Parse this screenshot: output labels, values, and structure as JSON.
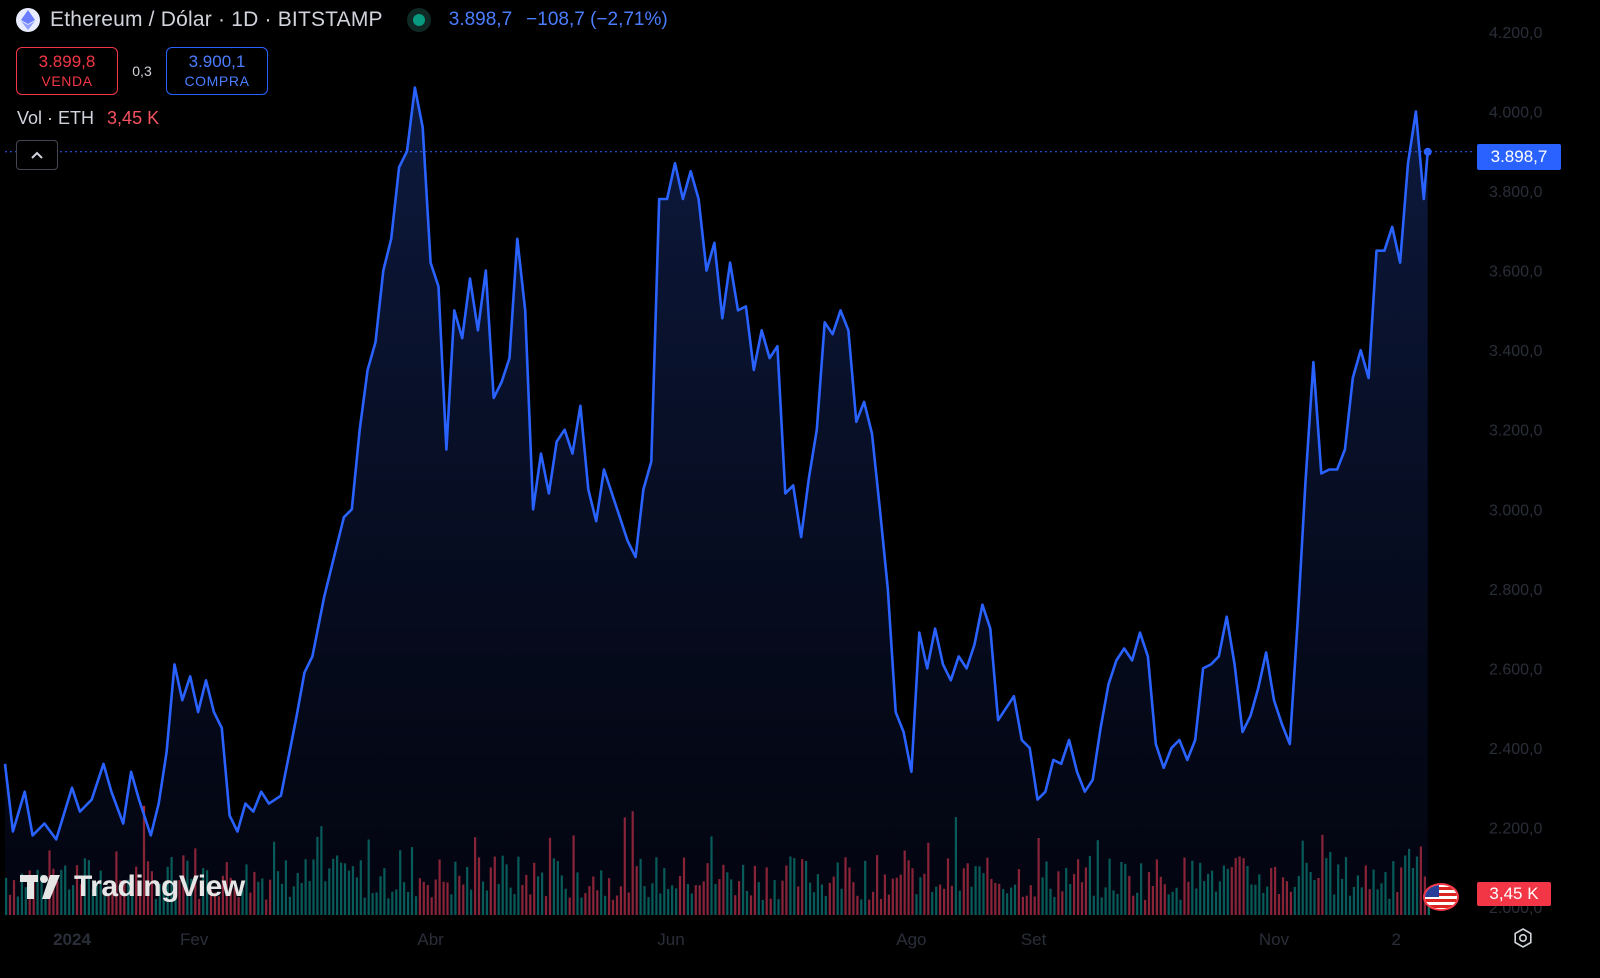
{
  "header": {
    "symbol_title": "Ethereum / Dólar · 1D · BITSTAMP",
    "last_price": "3.898,7",
    "change": "−108,7 (−2,71%)"
  },
  "quote": {
    "sell_value": "3.899,8",
    "sell_label": "VENDA",
    "spread": "0,3",
    "buy_value": "3.900,1",
    "buy_label": "COMPRA"
  },
  "volume": {
    "label": "Vol · ETH",
    "value": "3,45 K"
  },
  "brand": "TradingView",
  "price_scale_tag": "3.898,7",
  "volume_scale_tag": "3,45 K",
  "colors": {
    "line": "#2962ff",
    "up_volume": "#089981",
    "down_volume": "#f23645",
    "background": "#000000"
  },
  "icons": [
    "ethereum-icon",
    "live-dot-icon",
    "chevron-up-icon",
    "tradingview-logo-icon",
    "us-flag-icon",
    "settings-icon"
  ],
  "chart_data": {
    "type": "area",
    "title": "Ethereum / Dólar · 1D · BITSTAMP",
    "y_axis_ticks": [
      "4.200,0",
      "4.000,0",
      "3.800,0",
      "3.600,0",
      "3.400,0",
      "3.200,0",
      "3.000,0",
      "2.800,0",
      "2.600,0",
      "2.400,0",
      "2.200,0",
      "2.000,0"
    ],
    "y_tick_values": [
      4200,
      4000,
      3800,
      3600,
      3400,
      3200,
      3000,
      2800,
      2600,
      2400,
      2200,
      2000
    ],
    "ylim": [
      1980,
      4230
    ],
    "x_axis_ticks": [
      {
        "label": "2024",
        "date": "2024-01-01"
      },
      {
        "label": "Fev",
        "date": "2024-02-01"
      },
      {
        "label": "Abr",
        "date": "2024-04-01"
      },
      {
        "label": "Jun",
        "date": "2024-06-01"
      },
      {
        "label": "Ago",
        "date": "2024-08-01"
      },
      {
        "label": "Set",
        "date": "2024-09-01"
      },
      {
        "label": "Nov",
        "date": "2024-11-01"
      },
      {
        "label": "2",
        "date": "2024-12-02"
      }
    ],
    "x_range": [
      "2023-12-15",
      "2024-12-22"
    ],
    "series": [
      {
        "values": [
          [
            "2023-12-15",
            2360
          ],
          [
            "2023-12-17",
            2190
          ],
          [
            "2023-12-20",
            2290
          ],
          [
            "2023-12-22",
            2180
          ],
          [
            "2023-12-25",
            2210
          ],
          [
            "2023-12-28",
            2170
          ],
          [
            "2024-01-01",
            2300
          ],
          [
            "2024-01-03",
            2240
          ],
          [
            "2024-01-06",
            2270
          ],
          [
            "2024-01-09",
            2360
          ],
          [
            "2024-01-11",
            2290
          ],
          [
            "2024-01-14",
            2210
          ],
          [
            "2024-01-16",
            2340
          ],
          [
            "2024-01-18",
            2270
          ],
          [
            "2024-01-21",
            2180
          ],
          [
            "2024-01-23",
            2260
          ],
          [
            "2024-01-25",
            2390
          ],
          [
            "2024-01-27",
            2610
          ],
          [
            "2024-01-29",
            2520
          ],
          [
            "2024-01-31",
            2580
          ],
          [
            "2024-02-02",
            2490
          ],
          [
            "2024-02-04",
            2570
          ],
          [
            "2024-02-06",
            2490
          ],
          [
            "2024-02-08",
            2450
          ],
          [
            "2024-02-10",
            2230
          ],
          [
            "2024-02-12",
            2190
          ],
          [
            "2024-02-14",
            2260
          ],
          [
            "2024-02-16",
            2240
          ],
          [
            "2024-02-18",
            2290
          ],
          [
            "2024-02-20",
            2260
          ],
          [
            "2024-02-23",
            2280
          ],
          [
            "2024-02-25",
            2380
          ],
          [
            "2024-02-27",
            2480
          ],
          [
            "2024-02-29",
            2590
          ],
          [
            "2024-03-02",
            2630
          ],
          [
            "2024-03-05",
            2780
          ],
          [
            "2024-03-08",
            2900
          ],
          [
            "2024-03-10",
            2980
          ],
          [
            "2024-03-12",
            3000
          ],
          [
            "2024-03-14",
            3200
          ],
          [
            "2024-03-16",
            3350
          ],
          [
            "2024-03-18",
            3420
          ],
          [
            "2024-03-20",
            3600
          ],
          [
            "2024-03-22",
            3680
          ],
          [
            "2024-03-24",
            3860
          ],
          [
            "2024-03-26",
            3900
          ],
          [
            "2024-03-28",
            4060
          ],
          [
            "2024-03-30",
            3960
          ],
          [
            "2024-04-01",
            3620
          ],
          [
            "2024-04-03",
            3560
          ],
          [
            "2024-04-05",
            3150
          ],
          [
            "2024-04-07",
            3500
          ],
          [
            "2024-04-09",
            3430
          ],
          [
            "2024-04-11",
            3580
          ],
          [
            "2024-04-13",
            3450
          ],
          [
            "2024-04-15",
            3600
          ],
          [
            "2024-04-17",
            3280
          ],
          [
            "2024-04-19",
            3320
          ],
          [
            "2024-04-21",
            3380
          ],
          [
            "2024-04-23",
            3680
          ],
          [
            "2024-04-25",
            3500
          ],
          [
            "2024-04-27",
            3000
          ],
          [
            "2024-04-29",
            3140
          ],
          [
            "2024-05-01",
            3040
          ],
          [
            "2024-05-03",
            3170
          ],
          [
            "2024-05-05",
            3200
          ],
          [
            "2024-05-07",
            3140
          ],
          [
            "2024-05-09",
            3260
          ],
          [
            "2024-05-11",
            3050
          ],
          [
            "2024-05-13",
            2970
          ],
          [
            "2024-05-15",
            3100
          ],
          [
            "2024-05-17",
            3040
          ],
          [
            "2024-05-19",
            2980
          ],
          [
            "2024-05-21",
            2920
          ],
          [
            "2024-05-23",
            2880
          ],
          [
            "2024-05-25",
            3050
          ],
          [
            "2024-05-27",
            3120
          ],
          [
            "2024-05-29",
            3780
          ],
          [
            "2024-05-31",
            3780
          ],
          [
            "2024-06-02",
            3870
          ],
          [
            "2024-06-04",
            3780
          ],
          [
            "2024-06-06",
            3850
          ],
          [
            "2024-06-08",
            3780
          ],
          [
            "2024-06-10",
            3600
          ],
          [
            "2024-06-12",
            3670
          ],
          [
            "2024-06-14",
            3480
          ],
          [
            "2024-06-16",
            3620
          ],
          [
            "2024-06-18",
            3500
          ],
          [
            "2024-06-20",
            3510
          ],
          [
            "2024-06-22",
            3350
          ],
          [
            "2024-06-24",
            3450
          ],
          [
            "2024-06-26",
            3380
          ],
          [
            "2024-06-28",
            3410
          ],
          [
            "2024-06-30",
            3040
          ],
          [
            "2024-07-02",
            3060
          ],
          [
            "2024-07-04",
            2930
          ],
          [
            "2024-07-06",
            3080
          ],
          [
            "2024-07-08",
            3200
          ],
          [
            "2024-07-10",
            3470
          ],
          [
            "2024-07-12",
            3440
          ],
          [
            "2024-07-14",
            3500
          ],
          [
            "2024-07-16",
            3450
          ],
          [
            "2024-07-18",
            3220
          ],
          [
            "2024-07-20",
            3270
          ],
          [
            "2024-07-22",
            3190
          ],
          [
            "2024-07-24",
            3000
          ],
          [
            "2024-07-26",
            2800
          ],
          [
            "2024-07-28",
            2490
          ],
          [
            "2024-07-30",
            2440
          ],
          [
            "2024-08-01",
            2340
          ],
          [
            "2024-08-03",
            2690
          ],
          [
            "2024-08-05",
            2600
          ],
          [
            "2024-08-07",
            2700
          ],
          [
            "2024-08-09",
            2610
          ],
          [
            "2024-08-11",
            2570
          ],
          [
            "2024-08-13",
            2630
          ],
          [
            "2024-08-15",
            2600
          ],
          [
            "2024-08-17",
            2660
          ],
          [
            "2024-08-19",
            2760
          ],
          [
            "2024-08-21",
            2700
          ],
          [
            "2024-08-23",
            2470
          ],
          [
            "2024-08-25",
            2500
          ],
          [
            "2024-08-27",
            2530
          ],
          [
            "2024-08-29",
            2420
          ],
          [
            "2024-08-31",
            2400
          ],
          [
            "2024-09-02",
            2270
          ],
          [
            "2024-09-04",
            2290
          ],
          [
            "2024-09-06",
            2370
          ],
          [
            "2024-09-08",
            2360
          ],
          [
            "2024-09-10",
            2420
          ],
          [
            "2024-09-12",
            2340
          ],
          [
            "2024-09-14",
            2290
          ],
          [
            "2024-09-16",
            2320
          ],
          [
            "2024-09-18",
            2450
          ],
          [
            "2024-09-20",
            2560
          ],
          [
            "2024-09-22",
            2620
          ],
          [
            "2024-09-24",
            2650
          ],
          [
            "2024-09-26",
            2620
          ],
          [
            "2024-09-28",
            2690
          ],
          [
            "2024-09-30",
            2630
          ],
          [
            "2024-10-02",
            2410
          ],
          [
            "2024-10-04",
            2350
          ],
          [
            "2024-10-06",
            2400
          ],
          [
            "2024-10-08",
            2420
          ],
          [
            "2024-10-10",
            2370
          ],
          [
            "2024-10-12",
            2420
          ],
          [
            "2024-10-14",
            2600
          ],
          [
            "2024-10-16",
            2610
          ],
          [
            "2024-10-18",
            2630
          ],
          [
            "2024-10-20",
            2730
          ],
          [
            "2024-10-22",
            2610
          ],
          [
            "2024-10-24",
            2440
          ],
          [
            "2024-10-26",
            2480
          ],
          [
            "2024-10-28",
            2550
          ],
          [
            "2024-10-30",
            2640
          ],
          [
            "2024-11-01",
            2520
          ],
          [
            "2024-11-03",
            2460
          ],
          [
            "2024-11-05",
            2410
          ],
          [
            "2024-11-07",
            2720
          ],
          [
            "2024-11-09",
            3070
          ],
          [
            "2024-11-11",
            3370
          ],
          [
            "2024-11-13",
            3090
          ],
          [
            "2024-11-15",
            3100
          ],
          [
            "2024-11-17",
            3100
          ],
          [
            "2024-11-19",
            3150
          ],
          [
            "2024-11-21",
            3330
          ],
          [
            "2024-11-23",
            3400
          ],
          [
            "2024-11-25",
            3330
          ],
          [
            "2024-11-27",
            3650
          ],
          [
            "2024-11-29",
            3650
          ],
          [
            "2024-12-01",
            3710
          ],
          [
            "2024-12-03",
            3620
          ],
          [
            "2024-12-05",
            3870
          ],
          [
            "2024-12-07",
            4000
          ],
          [
            "2024-12-09",
            3780
          ],
          [
            "2024-12-10",
            3898.7
          ]
        ]
      }
    ],
    "last_value": 3898.7,
    "volume_unit": "ETH",
    "grid": false,
    "legend": "none"
  }
}
